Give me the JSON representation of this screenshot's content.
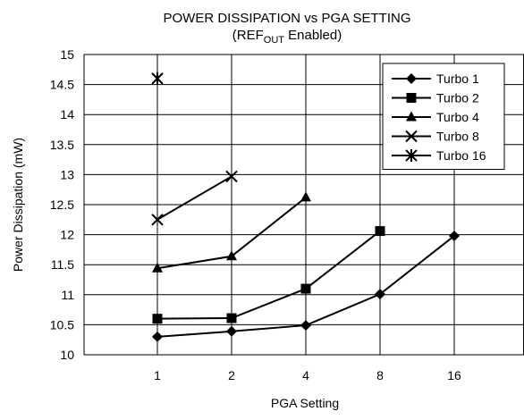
{
  "chart_data": {
    "type": "line",
    "title": "POWER DISSIPATION vs PGA SETTING",
    "subtitle": {
      "prefix": "(REF",
      "subscript": "OUT",
      "suffix": " Enabled)"
    },
    "xlabel": "PGA Setting",
    "ylabel": "Power Dissipation (mW)",
    "categories": [
      "1",
      "2",
      "4",
      "8",
      "16"
    ],
    "ylim": [
      10,
      15
    ],
    "yticks": [
      "10",
      "10.5",
      "11",
      "11.5",
      "12",
      "12.5",
      "13",
      "13.5",
      "14",
      "14.5",
      "15"
    ],
    "grid": true,
    "legend_position": "top-right",
    "series": [
      {
        "name": "Turbo 1",
        "marker": "diamond",
        "values": [
          10.3,
          10.39,
          10.49,
          11.01,
          11.98
        ]
      },
      {
        "name": "Turbo 2",
        "marker": "square",
        "values": [
          10.6,
          10.61,
          11.1,
          12.06,
          null
        ]
      },
      {
        "name": "Turbo 4",
        "marker": "triangle",
        "values": [
          11.44,
          11.64,
          12.62,
          null,
          null
        ]
      },
      {
        "name": "Turbo 8",
        "marker": "x",
        "values": [
          12.25,
          12.97,
          null,
          null,
          null
        ]
      },
      {
        "name": "Turbo 16",
        "marker": "asterisk",
        "values": [
          14.6,
          null,
          null,
          null,
          null
        ]
      }
    ]
  }
}
